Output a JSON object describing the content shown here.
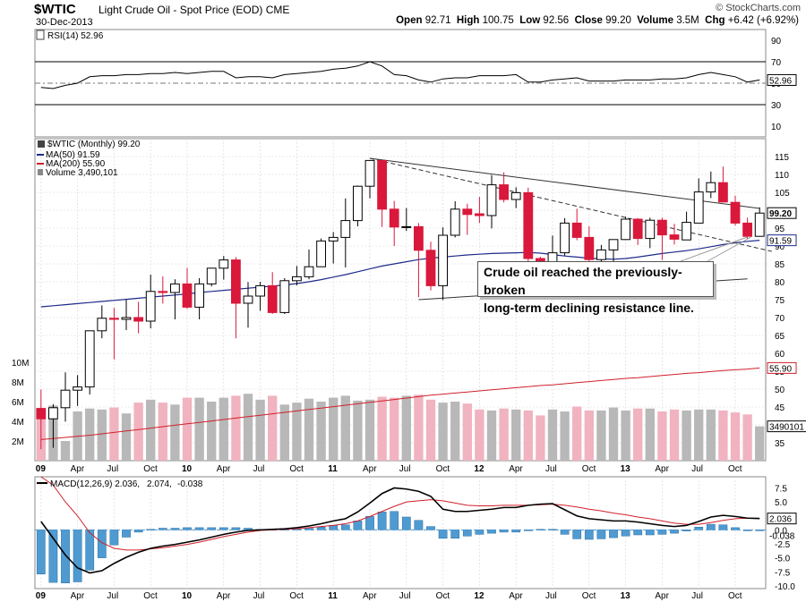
{
  "header": {
    "symbol": "$WTIC",
    "description": "Light Crude Oil - Spot Price (EOD)",
    "exchange": "CME",
    "date": "30-Dec-2013",
    "brand": "© StockCharts.com",
    "open_label": "Open",
    "open": "92.71",
    "high_label": "High",
    "high": "100.75",
    "low_label": "Low",
    "low": "92.56",
    "close_label": "Close",
    "close": "99.20",
    "volume_label": "Volume",
    "volume": "3.5M",
    "chg_label": "Chg",
    "chg": "+6.42 (+6.92%)"
  },
  "annotation": {
    "line1": "Crude oil reached the previously-broken",
    "line2": "long-term declining resistance line."
  },
  "chart_data": [
    {
      "type": "line",
      "panel": "rsi",
      "title": "RSI(14) 52.96",
      "ylim": [
        0,
        100
      ],
      "yticks": [
        10,
        30,
        50,
        70,
        90
      ],
      "reference_lines": [
        30,
        70
      ],
      "last_value_label": "52.96",
      "x": [
        "2009-01",
        "2009-02",
        "2009-03",
        "2009-04",
        "2009-05",
        "2009-06",
        "2009-07",
        "2009-08",
        "2009-09",
        "2009-10",
        "2009-11",
        "2009-12",
        "2010-01",
        "2010-02",
        "2010-03",
        "2010-04",
        "2010-05",
        "2010-06",
        "2010-07",
        "2010-08",
        "2010-09",
        "2010-10",
        "2010-11",
        "2010-12",
        "2011-01",
        "2011-02",
        "2011-03",
        "2011-04",
        "2011-05",
        "2011-06",
        "2011-07",
        "2011-08",
        "2011-09",
        "2011-10",
        "2011-11",
        "2011-12",
        "2012-01",
        "2012-02",
        "2012-03",
        "2012-04",
        "2012-05",
        "2012-06",
        "2012-07",
        "2012-08",
        "2012-09",
        "2012-10",
        "2012-11",
        "2012-12",
        "2013-01",
        "2013-02",
        "2013-03",
        "2013-04",
        "2013-05",
        "2013-06",
        "2013-07",
        "2013-08",
        "2013-09",
        "2013-10",
        "2013-11",
        "2013-12"
      ],
      "values": [
        46,
        45,
        48,
        50,
        56,
        57,
        57,
        58,
        58,
        59,
        59,
        60,
        59,
        60,
        61,
        61,
        55,
        56,
        56,
        55,
        58,
        59,
        60,
        61,
        63,
        64,
        66,
        70,
        66,
        58,
        57,
        53,
        51,
        54,
        55,
        55,
        57,
        57,
        57,
        58,
        51,
        51,
        53,
        54,
        55,
        52,
        52,
        52,
        53,
        53,
        53,
        54,
        54,
        55,
        58,
        60,
        58,
        56,
        51,
        53
      ]
    },
    {
      "type": "candlestick",
      "panel": "price",
      "title": "$WTIC (Monthly) 99.20",
      "ylim": [
        30,
        120
      ],
      "yticks": [
        35,
        40,
        45,
        50,
        55,
        60,
        65,
        70,
        75,
        80,
        85,
        90,
        95,
        100,
        105,
        110,
        115
      ],
      "x": [
        "2009-01",
        "2009-02",
        "2009-03",
        "2009-04",
        "2009-05",
        "2009-06",
        "2009-07",
        "2009-08",
        "2009-09",
        "2009-10",
        "2009-11",
        "2009-12",
        "2010-01",
        "2010-02",
        "2010-03",
        "2010-04",
        "2010-05",
        "2010-06",
        "2010-07",
        "2010-08",
        "2010-09",
        "2010-10",
        "2010-11",
        "2010-12",
        "2011-01",
        "2011-02",
        "2011-03",
        "2011-04",
        "2011-05",
        "2011-06",
        "2011-07",
        "2011-08",
        "2011-09",
        "2011-10",
        "2011-11",
        "2011-12",
        "2012-01",
        "2012-02",
        "2012-03",
        "2012-04",
        "2012-05",
        "2012-06",
        "2012-07",
        "2012-08",
        "2012-09",
        "2012-10",
        "2012-11",
        "2012-12",
        "2013-01",
        "2013-02",
        "2013-03",
        "2013-04",
        "2013-05",
        "2013-06",
        "2013-07",
        "2013-08",
        "2013-09",
        "2013-10",
        "2013-11",
        "2013-12"
      ],
      "open": [
        44.6,
        41.7,
        44.8,
        49.7,
        50.6,
        66.3,
        69.8,
        69.5,
        70.0,
        69.0,
        77.3,
        77.0,
        79.4,
        72.9,
        79.4,
        83.8,
        86.1,
        74.0,
        76.0,
        78.9,
        71.4,
        80.3,
        81.4,
        84.2,
        91.4,
        92.4,
        97.1,
        106.7,
        113.9,
        100.3,
        95.3,
        95.4,
        88.8,
        78.9,
        93.0,
        100.3,
        99.0,
        98.5,
        107.1,
        103.0,
        104.9,
        86.5,
        84.8,
        88.1,
        96.4,
        92.4,
        86.2,
        88.9,
        91.8,
        97.5,
        92.1,
        97.2,
        93.1,
        91.7,
        96.4,
        105.1,
        107.7,
        102.2,
        96.4,
        92.7
      ],
      "high": [
        49.9,
        45.8,
        54.7,
        53.9,
        66.3,
        73.4,
        72.7,
        75.0,
        74.4,
        82.0,
        81.5,
        80.7,
        83.9,
        81.0,
        83.8,
        87.2,
        86.9,
        79.9,
        80.0,
        82.7,
        81.0,
        84.4,
        89.0,
        92.1,
        93.9,
        103.3,
        106.9,
        114.0,
        113.4,
        102.6,
        100.6,
        96.4,
        91.2,
        95.2,
        102.5,
        101.8,
        103.7,
        109.8,
        110.6,
        106.4,
        106.3,
        87.0,
        92.9,
        97.8,
        100.4,
        95.5,
        90.3,
        90.9,
        98.2,
        97.8,
        97.9,
        97.9,
        96.2,
        99.6,
        108.9,
        110.8,
        112.2,
        104.1,
        97.9,
        100.8
      ],
      "low": [
        33.2,
        33.6,
        40.9,
        45.3,
        48.5,
        64.2,
        58.3,
        66.5,
        65.6,
        67.0,
        73.9,
        69.5,
        72.4,
        69.5,
        78.7,
        80.6,
        64.2,
        67.2,
        71.9,
        71.0,
        71.0,
        79.0,
        80.7,
        84.3,
        85.1,
        84.0,
        95.5,
        103.3,
        95.3,
        90.0,
        94.2,
        75.7,
        77.6,
        74.9,
        92.4,
        93.1,
        96.4,
        94.9,
        102.2,
        100.6,
        84.6,
        77.3,
        83.4,
        87.3,
        91.6,
        84.1,
        84.5,
        84.0,
        91.7,
        90.3,
        89.4,
        86.1,
        90.4,
        92.6,
        96.4,
        103.4,
        102.2,
        95.7,
        92.0,
        92.6
      ],
      "close": [
        41.7,
        44.8,
        49.7,
        50.6,
        66.3,
        69.8,
        69.5,
        70.0,
        69.0,
        77.3,
        77.0,
        79.4,
        72.9,
        79.4,
        83.8,
        86.1,
        74.0,
        76.0,
        78.9,
        71.4,
        80.3,
        81.4,
        84.2,
        91.4,
        92.4,
        97.1,
        106.7,
        113.9,
        100.3,
        95.3,
        95.4,
        88.8,
        78.9,
        93.0,
        100.3,
        98.8,
        98.5,
        107.1,
        103.0,
        104.9,
        86.5,
        84.8,
        88.1,
        96.4,
        92.4,
        86.2,
        88.9,
        91.8,
        97.5,
        92.1,
        97.2,
        93.1,
        91.9,
        96.6,
        105.1,
        107.7,
        102.3,
        96.4,
        92.7,
        99.2
      ],
      "ma50": [
        null,
        null,
        null,
        null,
        null,
        null,
        null,
        null,
        null,
        null,
        null,
        null,
        null,
        null,
        null,
        null,
        null,
        null,
        null,
        null,
        null,
        null,
        null,
        null,
        null,
        null,
        null,
        null,
        null,
        null,
        null,
        null,
        null,
        null,
        null,
        null,
        null,
        null,
        null,
        null,
        null,
        null,
        null,
        null,
        null,
        null,
        null,
        null,
        null,
        null,
        null,
        null,
        null,
        null,
        null,
        null,
        null,
        null,
        null,
        null
      ],
      "ma50_label": "MA(50) 91.59",
      "ma50_line": [
        [
          0,
          null
        ]
      ],
      "ma200_label": "MA(200) 55.90",
      "volume_label": "Volume 3,490,101",
      "last_close_label": "99.20",
      "last_ma50_label": "91.59",
      "last_ma200_label": "55.90",
      "last_volume_label": "3490101",
      "volume_axis_ticks": [
        "2M",
        "4M",
        "6M",
        "8M",
        "10M"
      ],
      "volume_millions": [
        5.2,
        5.6,
        2.0,
        5.0,
        5.3,
        5.2,
        5.4,
        4.8,
        5.9,
        6.2,
        5.9,
        5.7,
        6.4,
        6.4,
        6.0,
        6.4,
        6.6,
        6.8,
        6.2,
        6.6,
        5.7,
        5.9,
        6.3,
        6.0,
        6.4,
        6.6,
        6.1,
        6.2,
        6.5,
        6.4,
        6.6,
        6.7,
        6.2,
        5.9,
        6.0,
        5.8,
        5.2,
        5.1,
        5.3,
        5.2,
        5.1,
        4.6,
        5.2,
        5.0,
        5.5,
        5.1,
        5.1,
        5.4,
        5.1,
        5.3,
        5.3,
        5.0,
        5.2,
        5.1,
        5.2,
        5.2,
        5.1,
        4.9,
        4.7,
        3.49
      ]
    },
    {
      "type": "line",
      "panel": "macd",
      "title": "MACD(12,26,9) 2.036, 2.074, -0.038",
      "legend_macd": "MACD(12,26,9) 2.036,",
      "legend_signal": "2.074,",
      "legend_hist": "-0.038",
      "ylim": [
        -10.5,
        9.5
      ],
      "yticks": [
        -10.0,
        -7.5,
        -5.0,
        -2.5,
        0.0,
        2.5,
        5.0,
        7.5
      ],
      "last_labels": [
        "2.036",
        "-0.038"
      ],
      "x": [
        "2009-01",
        "2009-02",
        "2009-03",
        "2009-04",
        "2009-05",
        "2009-06",
        "2009-07",
        "2009-08",
        "2009-09",
        "2009-10",
        "2009-11",
        "2009-12",
        "2010-01",
        "2010-02",
        "2010-03",
        "2010-04",
        "2010-05",
        "2010-06",
        "2010-07",
        "2010-08",
        "2010-09",
        "2010-10",
        "2010-11",
        "2010-12",
        "2011-01",
        "2011-02",
        "2011-03",
        "2011-04",
        "2011-05",
        "2011-06",
        "2011-07",
        "2011-08",
        "2011-09",
        "2011-10",
        "2011-11",
        "2011-12",
        "2012-01",
        "2012-02",
        "2012-03",
        "2012-04",
        "2012-05",
        "2012-06",
        "2012-07",
        "2012-08",
        "2012-09",
        "2012-10",
        "2012-11",
        "2012-12",
        "2013-01",
        "2013-02",
        "2013-03",
        "2013-04",
        "2013-05",
        "2013-06",
        "2013-07",
        "2013-08",
        "2013-09",
        "2013-10",
        "2013-11",
        "2013-12"
      ],
      "series": [
        {
          "name": "MACD",
          "values": [
            1.5,
            -1.5,
            -4.5,
            -6.8,
            -7.7,
            -7.3,
            -6.0,
            -4.9,
            -4.0,
            -3.3,
            -2.9,
            -2.6,
            -2.2,
            -1.8,
            -1.3,
            -0.8,
            -0.4,
            -0.1,
            0.0,
            0.1,
            0.2,
            0.4,
            0.7,
            1.1,
            1.6,
            2.0,
            3.2,
            4.8,
            6.5,
            7.5,
            7.3,
            6.9,
            6.0,
            3.7,
            3.3,
            3.3,
            3.5,
            3.7,
            4.0,
            4.0,
            4.4,
            4.6,
            4.7,
            3.6,
            2.5,
            2.0,
            1.8,
            1.6,
            1.6,
            1.4,
            1.1,
            0.8,
            0.6,
            0.8,
            1.5,
            2.3,
            2.6,
            2.4,
            2.1,
            2.036
          ]
        },
        {
          "name": "Signal",
          "values": [
            9.5,
            8.0,
            5.0,
            2.5,
            -0.5,
            -2.3,
            -3.3,
            -3.6,
            -3.6,
            -3.4,
            -3.2,
            -2.9,
            -2.6,
            -2.2,
            -1.7,
            -1.2,
            -0.8,
            -0.4,
            -0.1,
            0.0,
            0.1,
            0.2,
            0.4,
            0.6,
            0.8,
            1.1,
            1.6,
            2.4,
            3.3,
            4.2,
            5.0,
            5.2,
            5.4,
            5.2,
            4.8,
            4.4,
            4.3,
            4.3,
            4.4,
            4.4,
            4.4,
            4.5,
            4.6,
            4.4,
            4.1,
            3.7,
            3.4,
            3.0,
            2.7,
            2.3,
            2.0,
            1.6,
            1.2,
            1.0,
            1.0,
            1.3,
            1.7,
            2.0,
            2.1,
            2.074
          ]
        },
        {
          "name": "Histogram",
          "values": [
            -7.9,
            -9.4,
            -9.5,
            -9.3,
            -7.2,
            -5.0,
            -2.7,
            -1.3,
            -0.4,
            0.1,
            0.3,
            0.3,
            0.4,
            0.4,
            0.4,
            0.4,
            0.4,
            0.3,
            0.1,
            0.1,
            0.1,
            0.2,
            0.3,
            0.5,
            0.8,
            0.9,
            1.6,
            2.4,
            3.2,
            3.3,
            2.3,
            1.7,
            0.6,
            -1.5,
            -1.5,
            -1.1,
            -0.8,
            -0.6,
            -0.4,
            -0.4,
            0.0,
            0.1,
            0.1,
            -0.8,
            -1.6,
            -1.7,
            -1.6,
            -1.4,
            -1.1,
            -0.9,
            -0.9,
            -0.8,
            -0.6,
            -0.2,
            0.5,
            1.0,
            0.9,
            0.4,
            0.0,
            -0.038
          ]
        }
      ]
    }
  ],
  "overlays": {
    "ma50": [
      null,
      null,
      null,
      null,
      null,
      null,
      null,
      null,
      null,
      null,
      null,
      null,
      null,
      null,
      null,
      null,
      null,
      null,
      null,
      null,
      null,
      null,
      null,
      null,
      null,
      null,
      null,
      null,
      null,
      null,
      null,
      null,
      null,
      null,
      null,
      null,
      null,
      null,
      null,
      null,
      null,
      null,
      null,
      null,
      null,
      null,
      null,
      null,
      null,
      null,
      null,
      null,
      null,
      null,
      null,
      null,
      null,
      null,
      null,
      null
    ],
    "ma50_values": [
      73.0,
      73.3,
      73.6,
      73.9,
      74.2,
      74.5,
      74.8,
      75.1,
      75.4,
      75.7,
      76.0,
      76.3,
      76.6,
      77.0,
      77.3,
      77.6,
      77.9,
      78.2,
      78.5,
      78.8,
      79.1,
      79.5,
      80.0,
      80.6,
      81.3,
      82.0,
      82.8,
      83.6,
      84.4,
      85.0,
      85.6,
      86.2,
      86.6,
      86.9,
      87.2,
      87.5,
      87.7,
      87.9,
      88.0,
      88.1,
      88.2,
      88.0,
      87.6,
      87.2,
      86.9,
      86.6,
      86.4,
      86.3,
      86.5,
      86.9,
      87.4,
      87.9,
      88.3,
      88.7,
      89.2,
      89.8,
      90.4,
      90.9,
      91.3,
      91.59
    ],
    "ma200_values": [
      35.9,
      36.2,
      36.5,
      36.8,
      37.1,
      37.5,
      37.9,
      38.3,
      38.7,
      39.1,
      39.5,
      39.9,
      40.3,
      40.7,
      41.1,
      41.5,
      41.9,
      42.3,
      42.7,
      43.1,
      43.5,
      43.9,
      44.3,
      44.7,
      45.1,
      45.5,
      45.9,
      46.3,
      46.7,
      47.1,
      47.5,
      47.9,
      48.3,
      48.6,
      48.9,
      49.2,
      49.5,
      49.8,
      50.1,
      50.4,
      50.7,
      51.0,
      51.2,
      51.5,
      51.8,
      52.1,
      52.4,
      52.7,
      53.0,
      53.2,
      53.5,
      53.8,
      54.1,
      54.4,
      54.6,
      54.9,
      55.2,
      55.4,
      55.6,
      55.9
    ],
    "resistance_line_solid": [
      [
        27,
        114.5
      ],
      [
        59,
        100.5
      ]
    ],
    "resistance_line_dashed": [
      [
        27,
        114.5
      ],
      [
        60,
        88.5
      ]
    ],
    "support_line": [
      [
        31,
        75
      ],
      [
        58,
        80.8
      ]
    ],
    "callout_pointer_to": [
      58,
      92.5
    ]
  },
  "x_axis": {
    "month_labels": [
      "09",
      "Apr",
      "Jul",
      "Oct",
      "10",
      "Apr",
      "Jul",
      "Oct",
      "11",
      "Apr",
      "Jul",
      "Oct",
      "12",
      "Apr",
      "Jul",
      "Oct",
      "13",
      "Apr",
      "Jul",
      "Oct"
    ],
    "month_index": [
      0,
      3,
      6,
      9,
      12,
      15,
      18,
      21,
      24,
      27,
      30,
      33,
      36,
      39,
      42,
      45,
      48,
      51,
      54,
      57
    ],
    "bold_years": [
      "09",
      "10",
      "11",
      "12",
      "13"
    ]
  },
  "colors": {
    "up": "#ffffff",
    "down": "#d9183b",
    "ma50": "#1d2a8a",
    "ma200": "#d0202a",
    "vol_up": "#b8b8b8",
    "vol_down": "#f0b3bf",
    "hist": "#4f9bd1",
    "macd": "#000000",
    "signal": "#d0202a",
    "grid": "#d6d6d6",
    "trend": "#333333"
  }
}
